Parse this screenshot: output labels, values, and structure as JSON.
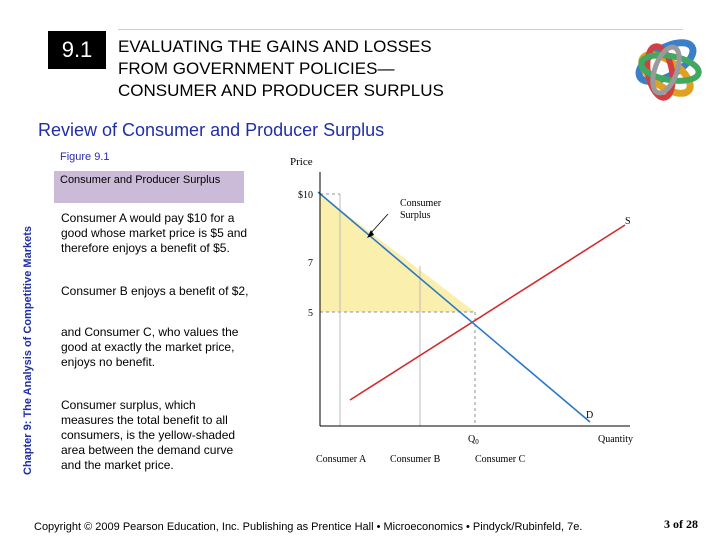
{
  "header": {
    "section_number": "9.1",
    "title_lines": [
      "EVALUATING THE GAINS AND LOSSES",
      "FROM GOVERNMENT POLICIES—",
      "CONSUMER AND PRODUCER SURPLUS"
    ]
  },
  "subtitle": "Review of Consumer and Producer Surplus",
  "sidebar_label": "Chapter 9: The Analysis of Competitive Markets",
  "figure": {
    "label": "Figure 9.1",
    "caption": "Consumer and Producer Surplus",
    "paragraphs": {
      "p1": "Consumer A would pay $10 for a good whose market price is $5 and therefore enjoys a benefit of $5.",
      "p2": "Consumer B enjoys a benefit of $2,",
      "p3": "and Consumer C, who values the good at exactly the market price, enjoys no benefit.",
      "p4": "Consumer surplus, which measures the total benefit to all consumers, is the yellow-shaded area between the demand curve and the market price."
    }
  },
  "diagram": {
    "y_axis_label": "Price",
    "x_axis_label": "Quantity",
    "price_ticks": [
      "$10",
      "7",
      "5"
    ],
    "q_label": "Q",
    "q_subscript": "0",
    "supply_label": "S",
    "demand_label": "D",
    "surplus_label_lines": [
      "Consumer",
      "Surplus"
    ],
    "consumer_a": "Consumer A",
    "consumer_b": "Consumer B",
    "consumer_c": "Consumer C",
    "colors": {
      "surplus": "#fbefae",
      "supply": "#d22b2b",
      "demand": "#2878c8",
      "dashed": "#909090"
    }
  },
  "footer": {
    "copyright": "Copyright © 2009 Pearson Education, Inc. Publishing as Prentice Hall • Microeconomics • Pindyck/Rubinfeld, 7e.",
    "page": "3 of 28"
  }
}
